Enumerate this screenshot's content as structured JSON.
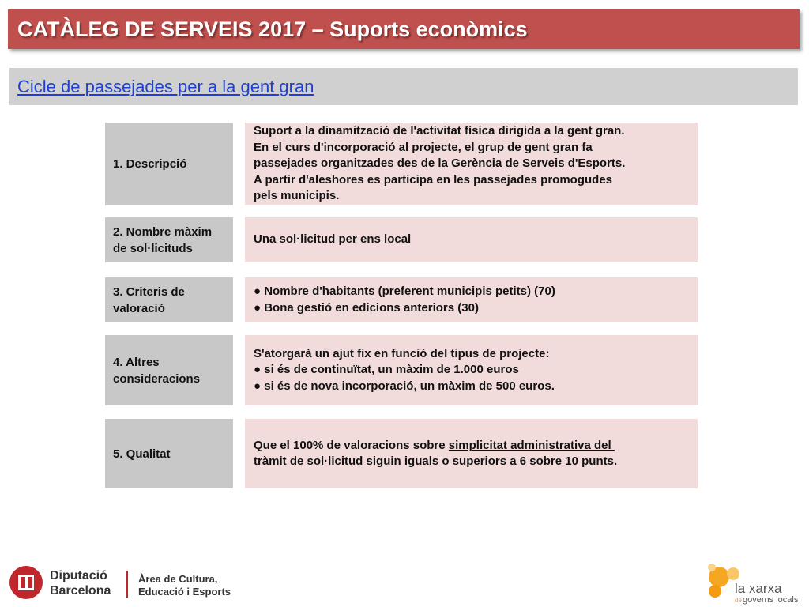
{
  "header": {
    "title": "CATÀLEG DE SERVEIS 2017 – Suports econòmics",
    "subtitle": "Cicle de passejades per a la gent gran"
  },
  "rows": [
    {
      "label_lines": [
        "1. Descripció"
      ],
      "content_lines": [
        "Suport a la dinamització de l'activitat física dirigida a la gent gran.",
        "En el curs d'incorporació al projecte, el grup de gent gran fa",
        "passejades organitzades des de la Gerència de Serveis d'Esports.",
        "A partir d'aleshores es participa en les passejades promogudes",
        "pels municipis."
      ]
    },
    {
      "label_lines": [
        "2. Nombre màxim",
        "de sol·licituds"
      ],
      "content_lines": [
        "Una sol·licitud per ens local"
      ]
    },
    {
      "label_lines": [
        "3. Criteris de",
        "valoració"
      ],
      "content_lines": [
        "● Nombre d'habitants (preferent municipis petits) (70)",
        "● Bona gestió en edicions anteriors (30)"
      ]
    },
    {
      "label_lines": [
        "4. Altres",
        "consideracions"
      ],
      "content_lines": [
        "S'atorgarà un ajut fix en funció del tipus de projecte:",
        "● si és de continuïtat, un màxim de 1.000 euros",
        "● si és de nova incorporació, un màxim de 500 euros."
      ]
    },
    {
      "label_lines": [
        "5. Qualitat"
      ],
      "content_lines": [
        [
          {
            "text": "Que el 100% de valoracions sobre "
          },
          {
            "text": "simplicitat administrativa del ",
            "underline": true
          }
        ],
        [
          {
            "text": "tràmit de sol·licitud",
            "underline": true
          },
          {
            "text": " siguin iguals o superiors a 6 sobre 10 punts."
          }
        ]
      ]
    }
  ],
  "footer": {
    "left_logo": [
      "Diputació",
      "Barcelona"
    ],
    "department": [
      "Àrea de Cultura,",
      "Educació i Esports"
    ],
    "right_logo": [
      "la xarxa",
      "de",
      "governs locals"
    ]
  }
}
